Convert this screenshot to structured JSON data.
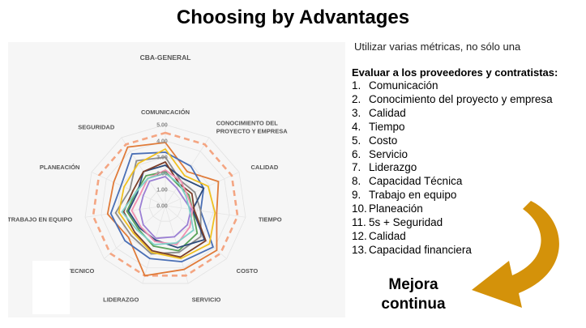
{
  "slide": {
    "title": "Choosing by Advantages",
    "subtitle": "Utilizar varias métricas, no sólo una",
    "list_heading": "Evaluar a los proveedores y contratistas:",
    "criteria": [
      {
        "num": "1.",
        "label": "Comunicación"
      },
      {
        "num": "2.",
        "label": "Conocimiento del proyecto y empresa"
      },
      {
        "num": "3.",
        "label": "Calidad"
      },
      {
        "num": "4.",
        "label": "Tiempo"
      },
      {
        "num": "5.",
        "label": "Costo"
      },
      {
        "num": "6.",
        "label": "Servicio"
      },
      {
        "num": "7.",
        "label": "Liderazgo"
      },
      {
        "num": "8.",
        "label": "Capacidad Técnica"
      },
      {
        "num": "9.",
        "label": "Trabajo en equipo"
      },
      {
        "num": "10.",
        "label": "Planeación"
      },
      {
        "num": "11.",
        "label": "5s + Seguridad"
      },
      {
        "num": "12.",
        "label": "Calidad"
      },
      {
        "num": "13.",
        "label": "Capacidad financiera"
      }
    ],
    "callout_line1": "Mejora",
    "callout_line2": "continua",
    "arrow_color": "#d4920a"
  },
  "chart_data": {
    "type": "radar",
    "title": "CBA-GENERAL",
    "axes": [
      "COMUNICACIÓN",
      "CONOCIMIENTO DEL PROYECTO Y EMPRESA",
      "CALIDAD",
      "TIEMPO",
      "COSTO",
      "SERVICIO",
      "LIDERAZGO",
      "TECNICO",
      "TRABAJO EN EQUIPO",
      "PLANEACIÓN",
      "SEGURIDAD"
    ],
    "tick_labels": [
      "0.00",
      "1.00",
      "2.00",
      "3.00",
      "4.00",
      "5.00"
    ],
    "range": [
      0,
      5
    ],
    "grid": true,
    "series": [
      {
        "color": "#f4a582",
        "dashed": true,
        "values": [
          4.5,
          4.5,
          4.5,
          4.5,
          4.5,
          4.5,
          4.5,
          4.5,
          4.5,
          4.5,
          4.5
        ]
      },
      {
        "color": "#e07b39",
        "dashed": false,
        "values": [
          3.9,
          2.5,
          3.6,
          3.2,
          4.2,
          4.1,
          4.5,
          3.0,
          3.6,
          3.5,
          4.3
        ]
      },
      {
        "color": "#4a6fb5",
        "dashed": false,
        "values": [
          3.3,
          2.9,
          2.6,
          2.2,
          3.9,
          3.6,
          3.4,
          3.3,
          3.4,
          3.0,
          3.8
        ]
      },
      {
        "color": "#8c8c8c",
        "dashed": false,
        "values": [
          3.0,
          1.8,
          2.0,
          2.2,
          2.9,
          3.0,
          3.1,
          2.8,
          3.1,
          2.4,
          3.3
        ]
      },
      {
        "color": "#f0c020",
        "dashed": false,
        "values": [
          3.5,
          2.2,
          2.9,
          3.1,
          3.6,
          3.4,
          3.0,
          2.6,
          2.9,
          2.8,
          3.1
        ]
      },
      {
        "color": "#5aa35a",
        "dashed": false,
        "values": [
          2.1,
          1.5,
          1.6,
          1.7,
          2.6,
          2.9,
          2.6,
          2.2,
          2.4,
          2.0,
          2.2
        ]
      },
      {
        "color": "#2c4a7a",
        "dashed": false,
        "values": [
          2.5,
          2.0,
          2.6,
          1.7,
          3.2,
          2.7,
          2.2,
          2.1,
          2.3,
          1.9,
          2.5
        ]
      },
      {
        "color": "#7b3f2a",
        "dashed": false,
        "values": [
          2.7,
          1.6,
          1.8,
          1.8,
          3.3,
          3.3,
          2.9,
          2.5,
          2.6,
          2.2,
          2.5
        ]
      },
      {
        "color": "#f08fb0",
        "dashed": false,
        "values": [
          2.2,
          1.8,
          1.5,
          1.7,
          2.0,
          2.5,
          2.3,
          2.0,
          2.1,
          1.7,
          2.0
        ]
      },
      {
        "color": "#9b7fd4",
        "dashed": false,
        "values": [
          1.8,
          1.3,
          1.2,
          1.6,
          1.8,
          2.0,
          2.1,
          1.8,
          1.6,
          1.5,
          1.8
        ]
      },
      {
        "color": "#7fd0c8",
        "dashed": false,
        "values": [
          2.0,
          1.6,
          1.4,
          1.5,
          2.3,
          2.4,
          2.5,
          2.3,
          2.7,
          2.0,
          2.0
        ]
      }
    ]
  }
}
